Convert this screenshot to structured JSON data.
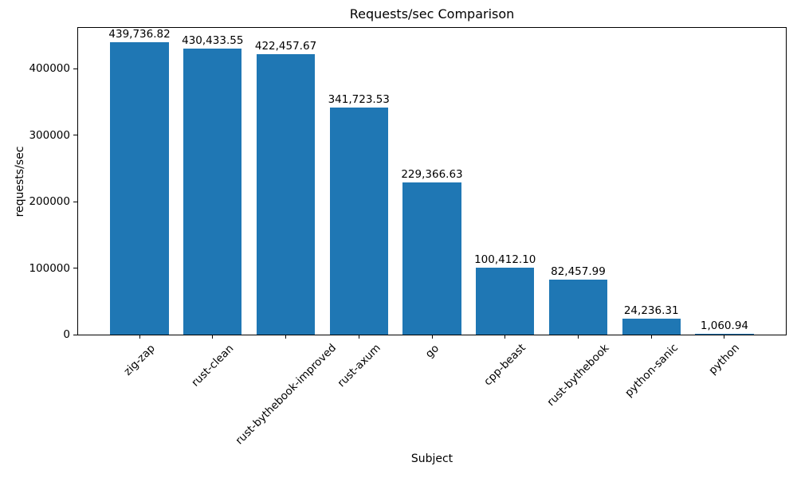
{
  "figure": {
    "background": "#ffffff"
  },
  "chart_data": {
    "type": "bar",
    "title": "Requests/sec Comparison",
    "xlabel": "Subject",
    "ylabel": "requests/sec",
    "categories": [
      "zig-zap",
      "rust-clean",
      "rust-bythebook-improved",
      "rust-axum",
      "go",
      "cpp-beast",
      "rust-bythebook",
      "python-sanic",
      "python"
    ],
    "values": [
      439736.82,
      430433.55,
      422457.67,
      341723.53,
      229366.63,
      100412.1,
      82457.99,
      24236.31,
      1060.94
    ],
    "bar_value_labels": [
      "439,736.82",
      "430,433.55",
      "422,457.67",
      "341,723.53",
      "229,366.63",
      "100,412.10",
      "82,457.99",
      "24,236.31",
      "1,060.94"
    ],
    "yticks": [
      0,
      100000,
      200000,
      300000,
      400000
    ],
    "ytick_labels": [
      "0",
      "100000",
      "200000",
      "300000",
      "400000"
    ],
    "ylim": [
      0,
      461723.66
    ],
    "bar_color": "#1f77b4",
    "axis_color": "#000000",
    "text_color": "#000000",
    "grid": false,
    "legend": null
  }
}
